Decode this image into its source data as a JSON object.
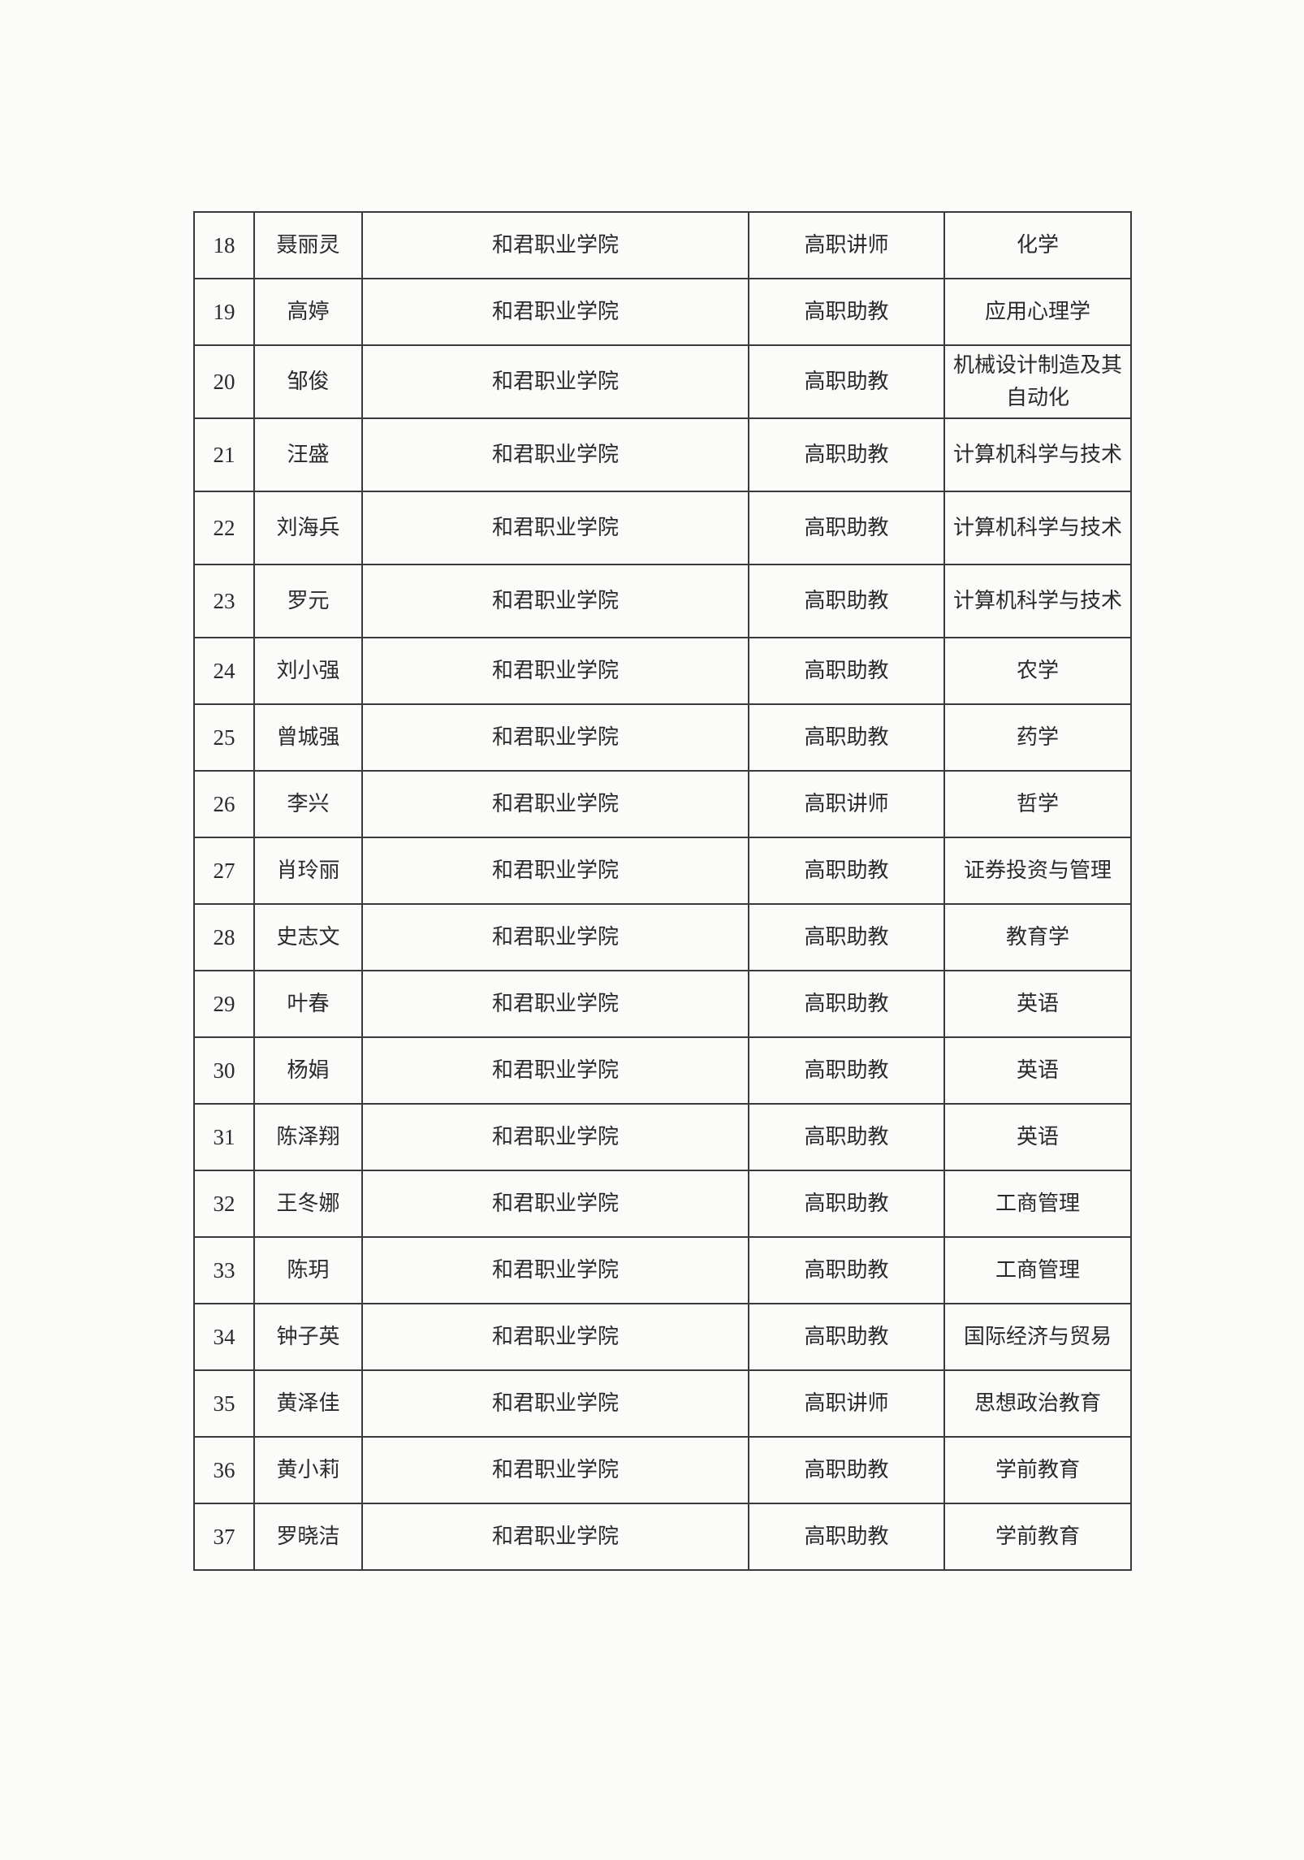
{
  "table": {
    "rows": [
      {
        "no": "18",
        "name": "聂丽灵",
        "school": "和君职业学院",
        "title": "高职讲师",
        "major": "化学"
      },
      {
        "no": "19",
        "name": "高婷",
        "school": "和君职业学院",
        "title": "高职助教",
        "major": "应用心理学"
      },
      {
        "no": "20",
        "name": "邹俊",
        "school": "和君职业学院",
        "title": "高职助教",
        "major": "机械设计制造及其自动化"
      },
      {
        "no": "21",
        "name": "汪盛",
        "school": "和君职业学院",
        "title": "高职助教",
        "major": "计算机科学与技术"
      },
      {
        "no": "22",
        "name": "刘海兵",
        "school": "和君职业学院",
        "title": "高职助教",
        "major": "计算机科学与技术"
      },
      {
        "no": "23",
        "name": "罗元",
        "school": "和君职业学院",
        "title": "高职助教",
        "major": "计算机科学与技术"
      },
      {
        "no": "24",
        "name": "刘小强",
        "school": "和君职业学院",
        "title": "高职助教",
        "major": "农学"
      },
      {
        "no": "25",
        "name": "曾城强",
        "school": "和君职业学院",
        "title": "高职助教",
        "major": "药学"
      },
      {
        "no": "26",
        "name": "李兴",
        "school": "和君职业学院",
        "title": "高职讲师",
        "major": "哲学"
      },
      {
        "no": "27",
        "name": "肖玲丽",
        "school": "和君职业学院",
        "title": "高职助教",
        "major": "证券投资与管理"
      },
      {
        "no": "28",
        "name": "史志文",
        "school": "和君职业学院",
        "title": "高职助教",
        "major": "教育学"
      },
      {
        "no": "29",
        "name": "叶春",
        "school": "和君职业学院",
        "title": "高职助教",
        "major": "英语"
      },
      {
        "no": "30",
        "name": "杨娟",
        "school": "和君职业学院",
        "title": "高职助教",
        "major": "英语"
      },
      {
        "no": "31",
        "name": "陈泽翔",
        "school": "和君职业学院",
        "title": "高职助教",
        "major": "英语"
      },
      {
        "no": "32",
        "name": "王冬娜",
        "school": "和君职业学院",
        "title": "高职助教",
        "major": "工商管理"
      },
      {
        "no": "33",
        "name": "陈玥",
        "school": "和君职业学院",
        "title": "高职助教",
        "major": "工商管理"
      },
      {
        "no": "34",
        "name": "钟子英",
        "school": "和君职业学院",
        "title": "高职助教",
        "major": "国际经济与贸易"
      },
      {
        "no": "35",
        "name": "黄泽佳",
        "school": "和君职业学院",
        "title": "高职讲师",
        "major": "思想政治教育"
      },
      {
        "no": "36",
        "name": "黄小莉",
        "school": "和君职业学院",
        "title": "高职助教",
        "major": "学前教育"
      },
      {
        "no": "37",
        "name": "罗晓洁",
        "school": "和君职业学院",
        "title": "高职助教",
        "major": "学前教育"
      }
    ]
  }
}
